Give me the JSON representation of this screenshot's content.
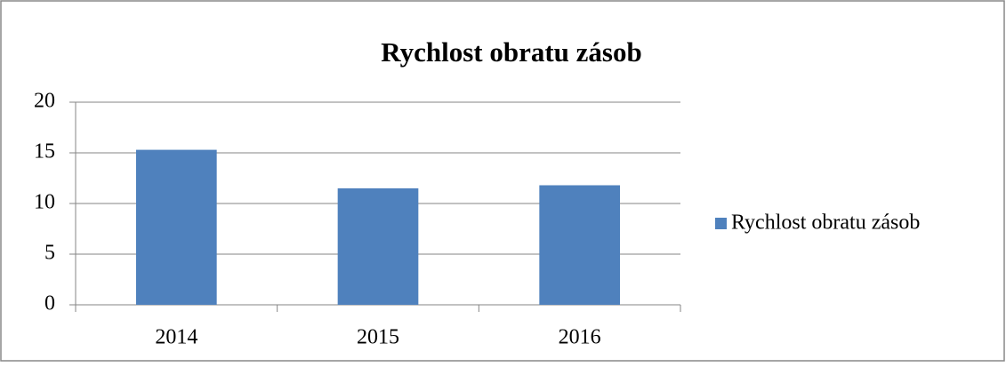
{
  "chart_data": {
    "type": "bar",
    "title": "Rychlost obratu zásob",
    "categories": [
      "2014",
      "2015",
      "2016"
    ],
    "series": [
      {
        "name": "Rychlost obratu zásob",
        "color": "#4f81bd",
        "values": [
          15.3,
          11.5,
          11.8
        ]
      }
    ],
    "ylim": [
      0,
      20
    ],
    "yticks": [
      0,
      5,
      10,
      15,
      20
    ],
    "grid": true,
    "legend": "right"
  }
}
